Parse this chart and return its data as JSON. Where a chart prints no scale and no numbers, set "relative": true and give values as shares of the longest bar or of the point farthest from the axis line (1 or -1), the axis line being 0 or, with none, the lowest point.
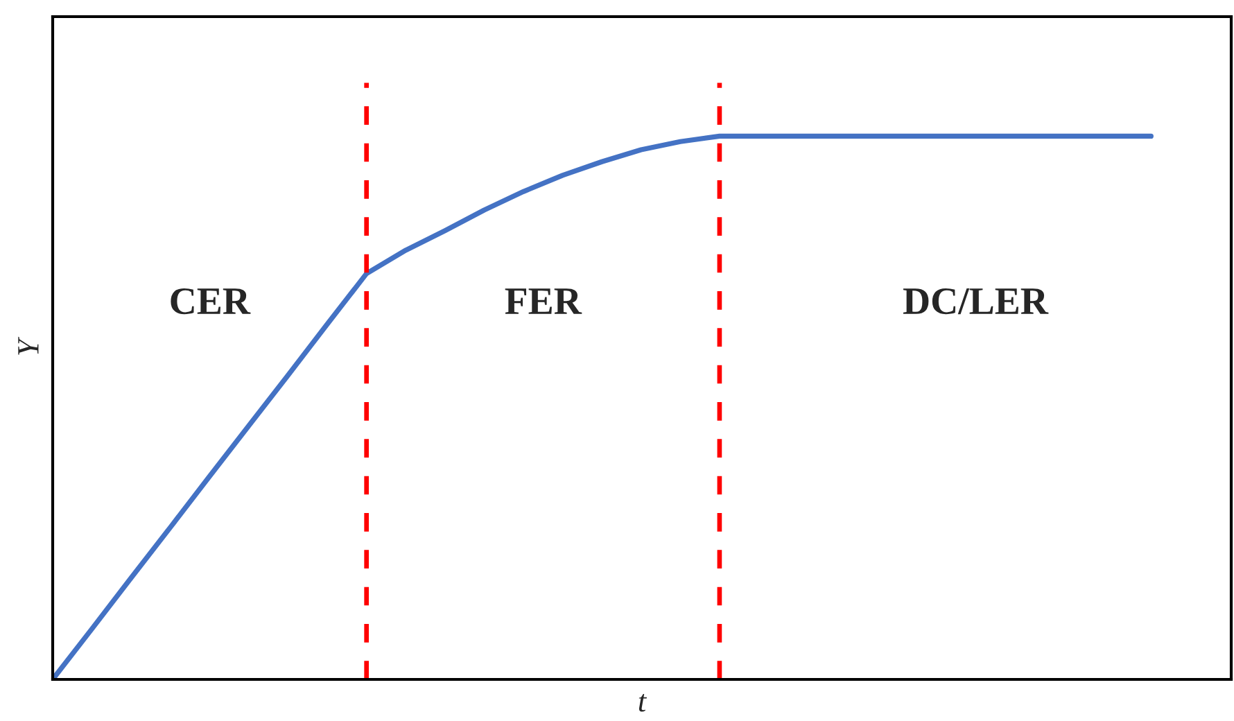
{
  "chart_data": {
    "type": "line",
    "relative": true,
    "xlabel": "t",
    "ylabel": "Y",
    "categories": [
      null,
      null,
      null,
      null,
      null,
      null,
      null,
      null,
      null,
      null,
      null,
      null,
      null,
      null,
      null,
      null,
      null,
      null,
      null,
      null,
      null,
      null,
      null,
      null,
      null,
      null,
      null,
      null,
      null
    ],
    "series": [
      {
        "color": "#4472c4",
        "values": [
          0,
          0.093,
          0.187,
          0.28,
          0.374,
          0.467,
          0.56,
          0.654,
          0.747,
          0.79,
          0.826,
          0.864,
          0.898,
          0.928,
          0.953,
          0.975,
          0.99,
          1,
          1,
          1,
          1,
          1,
          1,
          1,
          1,
          1,
          1,
          1,
          1
        ]
      }
    ],
    "annotations": [
      "CER",
      "FER",
      "DC/LER"
    ]
  }
}
